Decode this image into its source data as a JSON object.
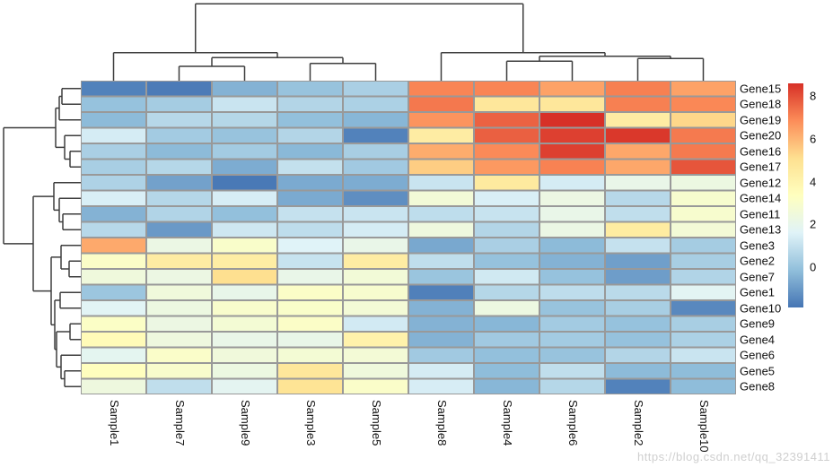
{
  "watermark": "https://blog.csdn.net/qq_32391411",
  "chart_data": {
    "type": "heatmap",
    "title": "",
    "rows": [
      "Gene15",
      "Gene18",
      "Gene19",
      "Gene20",
      "Gene16",
      "Gene17",
      "Gene12",
      "Gene14",
      "Gene11",
      "Gene13",
      "Gene3",
      "Gene2",
      "Gene7",
      "Gene1",
      "Gene10",
      "Gene9",
      "Gene4",
      "Gene6",
      "Gene5",
      "Gene8"
    ],
    "columns": [
      "Sample1",
      "Sample7",
      "Sample9",
      "Sample3",
      "Sample5",
      "Sample8",
      "Sample4",
      "Sample6",
      "Sample2",
      "Sample10"
    ],
    "values": [
      [
        -1.6,
        -1.75,
        -0.45,
        0.0,
        0.4,
        7.0,
        7.0,
        6.4,
        7.1,
        6.4
      ],
      [
        -0.05,
        0.3,
        1.1,
        0.6,
        0.45,
        7.25,
        4.7,
        4.7,
        7.1,
        6.95
      ],
      [
        -0.25,
        0.7,
        0.65,
        -0.1,
        -0.35,
        6.7,
        7.65,
        8.6,
        4.4,
        5.3
      ],
      [
        1.35,
        0.25,
        0.0,
        0.6,
        -1.6,
        4.4,
        7.7,
        8.3,
        8.45,
        7.2
      ],
      [
        0.4,
        -0.25,
        0.25,
        -0.3,
        0.35,
        6.2,
        6.9,
        8.3,
        6.3,
        7.2
      ],
      [
        0.35,
        0.65,
        -0.6,
        0.95,
        0.2,
        5.5,
        6.6,
        7.05,
        6.3,
        7.9
      ],
      [
        0.5,
        -0.85,
        -1.8,
        -0.65,
        -0.6,
        1.1,
        4.55,
        1.35,
        2.1,
        2.3
      ],
      [
        1.45,
        0.65,
        1.4,
        -0.65,
        -1.3,
        2.6,
        1.45,
        2.25,
        0.7,
        2.9
      ],
      [
        -0.45,
        0.55,
        -0.1,
        1.0,
        1.1,
        0.85,
        1.05,
        2.1,
        0.9,
        2.9
      ],
      [
        0.7,
        -1.05,
        1.2,
        0.85,
        1.35,
        2.4,
        0.6,
        2.2,
        4.45,
        2.65
      ],
      [
        6.25,
        2.2,
        3.0,
        1.6,
        2.1,
        -0.7,
        0.4,
        -0.25,
        1.0,
        0.3
      ],
      [
        3.1,
        4.4,
        4.35,
        1.05,
        4.4,
        0.9,
        -0.05,
        -0.45,
        -0.9,
        0.35
      ],
      [
        2.45,
        2.25,
        5.1,
        2.1,
        2.6,
        0.05,
        1.25,
        -0.05,
        -0.95,
        0.55
      ],
      [
        0.1,
        2.5,
        2.05,
        3.1,
        2.9,
        -1.65,
        0.65,
        0.85,
        0.75,
        1.75
      ],
      [
        1.7,
        2.3,
        2.95,
        3.0,
        2.65,
        -0.45,
        2.3,
        0.0,
        0.35,
        -1.45
      ],
      [
        3.15,
        2.25,
        2.7,
        3.1,
        1.3,
        -0.45,
        -0.35,
        0.25,
        -0.05,
        0.35
      ],
      [
        3.6,
        2.4,
        2.1,
        2.1,
        4.1,
        -0.45,
        0.2,
        0.25,
        -0.05,
        0.45
      ],
      [
        1.85,
        3.05,
        2.5,
        2.7,
        2.65,
        0.2,
        -0.1,
        0.0,
        0.6,
        1.1
      ],
      [
        3.4,
        2.95,
        2.3,
        4.7,
        2.45,
        1.35,
        -0.2,
        0.9,
        -0.25,
        -0.2
      ],
      [
        2.4,
        0.9,
        1.8,
        4.9,
        3.05,
        1.4,
        -0.35,
        0.65,
        -1.6,
        -0.2
      ]
    ],
    "color_domain": [
      -1.9,
      8.6
    ],
    "colormap": [
      "#4575B4",
      "#91BFDB",
      "#E0F3F8",
      "#FFFFBF",
      "#FEE090",
      "#FC8D59",
      "#D73027"
    ],
    "legend_ticks": [
      8,
      6,
      4,
      2,
      0
    ],
    "grid_line_color": "#999999",
    "dendrogram_line_color": "#3d3d3d",
    "col_dendrogram": {
      "h": 85.7,
      "children": [
        {
          "h": 31.3,
          "children": [
            "Sample1",
            {
              "h": 25.7,
              "children": [
                {
                  "h": 16,
                  "children": [
                    "Sample7",
                    "Sample9"
                  ]
                },
                {
                  "h": 19.3,
                  "children": [
                    "Sample3",
                    "Sample5"
                  ]
                }
              ]
            }
          ]
        },
        {
          "h": 31.3,
          "children": [
            "Sample8",
            {
              "h": 27.3,
              "children": [
                {
                  "h": 21.7,
                  "children": [
                    "Sample4",
                    "Sample6"
                  ]
                },
                {
                  "h": 24.7,
                  "children": [
                    "Sample2",
                    "Sample10"
                  ]
                }
              ]
            }
          ]
        }
      ]
    },
    "row_dendrogram": {
      "h": 86,
      "children": [
        {
          "h": 28,
          "children": [
            {
              "h": 24,
              "children": [
                {
                  "h": 21,
                  "children": [
                    "Gene15",
                    "Gene18"
                  ]
                },
                "Gene19"
              ]
            },
            {
              "h": 18,
              "children": [
                "Gene20",
                {
                  "h": 12,
                  "children": [
                    "Gene16",
                    "Gene17"
                  ]
                }
              ]
            }
          ]
        },
        {
          "h": 53,
          "children": [
            {
              "h": 30,
              "children": [
                "Gene12",
                {
                  "h": 24,
                  "children": [
                    "Gene14",
                    {
                      "h": 20,
                      "children": [
                        "Gene11",
                        "Gene13"
                      ]
                    }
                  ]
                }
              ]
            },
            {
              "h": 33,
              "children": [
                {
                  "h": 22,
                  "children": [
                    "Gene3",
                    {
                      "h": 13,
                      "children": [
                        "Gene2",
                        "Gene7"
                      ]
                    }
                  ]
                },
                {
                  "h": 29,
                  "children": [
                    {
                      "h": 23,
                      "children": [
                        "Gene1",
                        "Gene10"
                      ]
                    },
                    {
                      "h": 27,
                      "children": [
                        {
                          "h": 12,
                          "children": [
                            "Gene9",
                            "Gene4"
                          ]
                        },
                        {
                          "h": 22,
                          "children": [
                            "Gene6",
                            {
                              "h": 18,
                              "children": [
                                "Gene5",
                                "Gene8"
                              ]
                            }
                          ]
                        }
                      ]
                    }
                  ]
                }
              ]
            }
          ]
        }
      ]
    }
  }
}
